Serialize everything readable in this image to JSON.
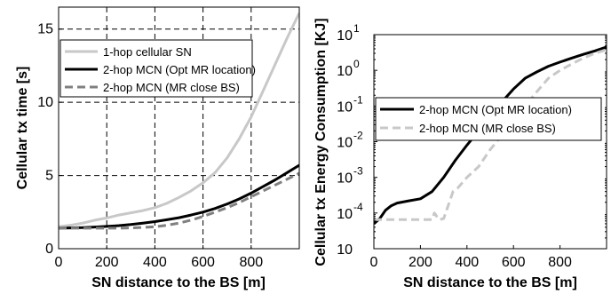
{
  "chart_data": [
    {
      "type": "line",
      "xlabel": "SN distance to the BS [m]",
      "ylabel": "Cellular tx time [s]",
      "xlim": [
        0,
        1000
      ],
      "ylim": [
        0,
        16.5
      ],
      "xticks": [
        0,
        200,
        400,
        600,
        800
      ],
      "yticks": [
        0,
        5,
        10,
        15
      ],
      "grid": true,
      "legend_position": "top-left",
      "series": [
        {
          "name": "1-hop cellular SN",
          "color": "#c8c8c8",
          "dash": "solid",
          "x": [
            0,
            50,
            100,
            150,
            200,
            250,
            300,
            350,
            400,
            450,
            500,
            550,
            600,
            650,
            700,
            750,
            800,
            850,
            900,
            950,
            1000
          ],
          "y": [
            1.5,
            1.6,
            1.75,
            1.95,
            2.1,
            2.3,
            2.45,
            2.6,
            2.8,
            3.1,
            3.5,
            3.95,
            4.5,
            5.2,
            6.2,
            7.5,
            9.0,
            10.8,
            12.6,
            14.4,
            16.1
          ]
        },
        {
          "name": "2-hop MCN (Opt MR location)",
          "color": "#000000",
          "dash": "solid",
          "x": [
            0,
            50,
            100,
            150,
            200,
            250,
            300,
            350,
            400,
            450,
            500,
            550,
            600,
            650,
            700,
            750,
            800,
            850,
            900,
            950,
            1000
          ],
          "y": [
            1.4,
            1.42,
            1.44,
            1.48,
            1.52,
            1.58,
            1.65,
            1.75,
            1.85,
            1.98,
            2.12,
            2.3,
            2.5,
            2.75,
            3.05,
            3.4,
            3.8,
            4.25,
            4.7,
            5.2,
            5.7
          ]
        },
        {
          "name": "2-hop MCN (MR close BS)",
          "color": "#808080",
          "dash": "dashed",
          "x": [
            0,
            50,
            100,
            150,
            200,
            250,
            300,
            350,
            400,
            450,
            500,
            550,
            600,
            650,
            700,
            750,
            800,
            850,
            900,
            950,
            1000
          ],
          "y": [
            1.4,
            1.4,
            1.4,
            1.4,
            1.4,
            1.4,
            1.42,
            1.45,
            1.5,
            1.6,
            1.75,
            1.95,
            2.2,
            2.5,
            2.8,
            3.15,
            3.55,
            3.95,
            4.35,
            4.75,
            5.15
          ]
        }
      ]
    },
    {
      "type": "line",
      "xlabel": "SN distance to the BS [m]",
      "ylabel": "Cellular tx Energy Consumption [KJ]",
      "xlim": [
        0,
        1000
      ],
      "ylim": [
        1e-05,
        10
      ],
      "yscale": "log",
      "xticks": [
        0,
        200,
        400,
        600,
        800
      ],
      "yticks": [
        1e-05,
        0.0001,
        0.001,
        0.01,
        0.1,
        1,
        10
      ],
      "ytick_labels": [
        {
          "base": "10",
          "exp": ""
        },
        {
          "base": "10",
          "exp": "-4"
        },
        {
          "base": "10",
          "exp": "-3"
        },
        {
          "base": "10",
          "exp": "-2"
        },
        {
          "base": "10",
          "exp": "-1"
        },
        {
          "base": "10",
          "exp": "0"
        },
        {
          "base": "10",
          "exp": "1"
        }
      ],
      "grid": false,
      "legend_position": "center",
      "series": [
        {
          "name": "2-hop MCN (Opt MR location)",
          "color": "#000000",
          "dash": "solid",
          "x": [
            0,
            25,
            50,
            75,
            100,
            150,
            200,
            250,
            300,
            350,
            400,
            450,
            500,
            550,
            600,
            650,
            700,
            750,
            800,
            850,
            900,
            950,
            1000
          ],
          "y": [
            5e-05,
            7e-05,
            0.00012,
            0.00016,
            0.00019,
            0.00022,
            0.00025,
            0.0004,
            0.001,
            0.003,
            0.008,
            0.02,
            0.05,
            0.13,
            0.3,
            0.6,
            0.9,
            1.3,
            1.7,
            2.2,
            2.8,
            3.5,
            4.5
          ]
        },
        {
          "name": "2-hop MCN (MR close BS)",
          "color": "#c8c8c8",
          "dash": "dashed",
          "x": [
            0,
            40,
            60,
            100,
            150,
            200,
            250,
            260,
            280,
            300,
            340,
            360,
            400,
            450,
            500,
            550,
            600,
            650,
            700,
            750,
            800,
            850,
            900,
            950,
            1000
          ],
          "y": [
            6.5e-05,
            6.5e-05,
            6.5e-05,
            6.5e-05,
            6.5e-05,
            6.5e-05,
            6.5e-05,
            0.0001,
            6.5e-05,
            7e-05,
            0.0004,
            0.0005,
            0.001,
            0.002,
            0.006,
            0.015,
            0.04,
            0.1,
            0.25,
            0.6,
            1.0,
            1.5,
            2.2,
            3.0,
            3.8
          ]
        }
      ]
    }
  ]
}
